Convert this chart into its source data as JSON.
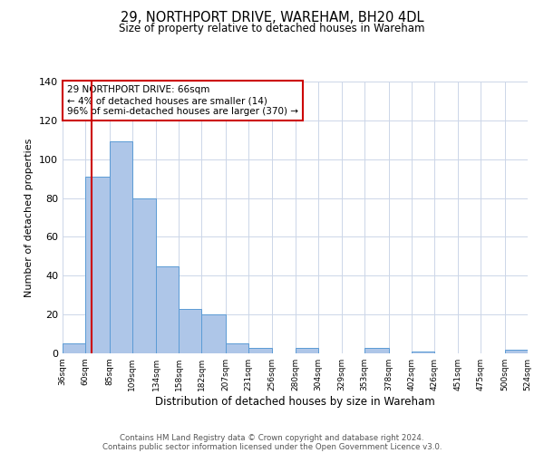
{
  "title": "29, NORTHPORT DRIVE, WAREHAM, BH20 4DL",
  "subtitle": "Size of property relative to detached houses in Wareham",
  "xlabel": "Distribution of detached houses by size in Wareham",
  "ylabel": "Number of detached properties",
  "bin_edges": [
    36,
    60,
    85,
    109,
    134,
    158,
    182,
    207,
    231,
    256,
    280,
    304,
    329,
    353,
    378,
    402,
    426,
    451,
    475,
    500,
    524
  ],
  "bar_heights": [
    5,
    91,
    109,
    80,
    45,
    23,
    20,
    5,
    3,
    0,
    3,
    0,
    0,
    3,
    0,
    1,
    0,
    0,
    0,
    2
  ],
  "bar_color": "#aec6e8",
  "bar_edge_color": "#5b9bd5",
  "vline_x": 66,
  "vline_color": "#cc0000",
  "annotation_line1": "29 NORTHPORT DRIVE: 66sqm",
  "annotation_line2": "← 4% of detached houses are smaller (14)",
  "annotation_line3": "96% of semi-detached houses are larger (370) →",
  "annotation_box_color": "#cc0000",
  "ylim": [
    0,
    140
  ],
  "yticks": [
    0,
    20,
    40,
    60,
    80,
    100,
    120,
    140
  ],
  "tick_labels": [
    "36sqm",
    "60sqm",
    "85sqm",
    "109sqm",
    "134sqm",
    "158sqm",
    "182sqm",
    "207sqm",
    "231sqm",
    "256sqm",
    "280sqm",
    "304sqm",
    "329sqm",
    "353sqm",
    "378sqm",
    "402sqm",
    "426sqm",
    "451sqm",
    "475sqm",
    "500sqm",
    "524sqm"
  ],
  "footer_line1": "Contains HM Land Registry data © Crown copyright and database right 2024.",
  "footer_line2": "Contains public sector information licensed under the Open Government Licence v3.0.",
  "bg_color": "#ffffff",
  "grid_color": "#ccd6e8"
}
